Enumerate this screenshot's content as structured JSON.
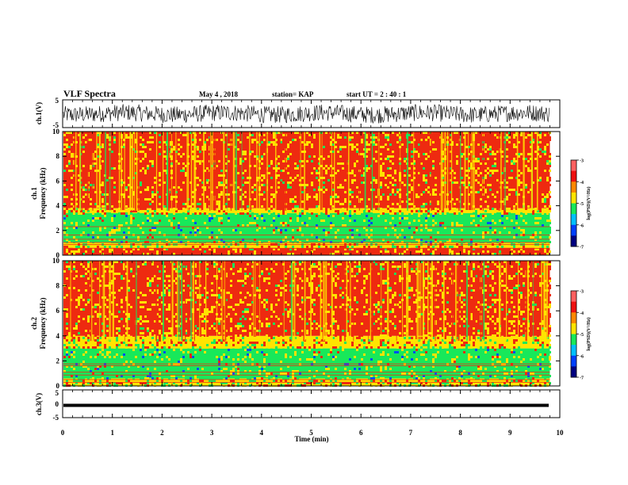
{
  "header": {
    "title": "VLF Spectra",
    "date": "May 4 , 2018",
    "station": "station= KAP",
    "start": "start UT = 2 : 40 : 1"
  },
  "chart_data": [
    {
      "type": "line",
      "name": "ch1-waveform",
      "ylabel": "ch.1(V)",
      "ylim": [
        -5,
        5
      ],
      "yticks": [
        "5",
        "-5"
      ],
      "xlim": [
        0,
        10
      ],
      "note_values": "dense noise waveform, approx -3.5 to 3 V"
    },
    {
      "type": "heatmap",
      "name": "ch1-spectrogram",
      "ylabel": "ch.1 Frequency (kHz)",
      "ylabel_line1": "ch.1",
      "ylabel_line2": "Frequency (kHz)",
      "ylim": [
        0,
        10
      ],
      "yticks": [
        "0",
        "2",
        "4",
        "6",
        "8",
        "10"
      ],
      "xlim": [
        0,
        9.8
      ],
      "bands": [
        {
          "from": 0.0,
          "to": 0.6,
          "level": "high"
        },
        {
          "from": 0.6,
          "to": 1.0,
          "level": "mixed"
        },
        {
          "from": 1.0,
          "to": 3.4,
          "level": "low"
        },
        {
          "from": 3.4,
          "to": 3.8,
          "level": "mid"
        },
        {
          "from": 3.8,
          "to": 10.0,
          "level": "high"
        }
      ],
      "colorbar": {
        "label": "log(PSD)(V²/Hz)",
        "ticks": [
          "-3",
          "-4",
          "-5",
          "-6",
          "-7"
        ],
        "range": [
          -7,
          -3
        ]
      }
    },
    {
      "type": "heatmap",
      "name": "ch2-spectrogram",
      "ylabel": "ch.2 Frequency (kHz)",
      "ylabel_line1": "ch.2",
      "ylabel_line2": "Frequency (kHz)",
      "ylim": [
        0,
        10
      ],
      "yticks": [
        "0",
        "2",
        "4",
        "6",
        "8",
        "10"
      ],
      "xlim": [
        0,
        9.8
      ],
      "bands": [
        {
          "from": 0.0,
          "to": 0.6,
          "level": "mixed"
        },
        {
          "from": 0.6,
          "to": 3.0,
          "level": "low"
        },
        {
          "from": 3.0,
          "to": 4.0,
          "level": "mid"
        },
        {
          "from": 4.0,
          "to": 10.0,
          "level": "high"
        }
      ],
      "colorbar": {
        "label": "log(PSD)(V²/Hz)",
        "ticks": [
          "-3",
          "-4",
          "-5",
          "-6",
          "-7"
        ],
        "range": [
          -7,
          -3
        ]
      }
    },
    {
      "type": "line",
      "name": "ch3-waveform",
      "ylabel": "ch.3(V)",
      "ylim": [
        -5,
        5
      ],
      "yticks": [
        "5",
        "0",
        "-5"
      ],
      "xlim": [
        0,
        10
      ],
      "values_constant": 0,
      "note_values": "flat thick trace near 0 V"
    }
  ],
  "xaxis": {
    "label": "Time (min)",
    "ticks": [
      "0",
      "1",
      "2",
      "3",
      "4",
      "5",
      "6",
      "7",
      "8",
      "9",
      "10"
    ]
  },
  "colors": {
    "high": "#ee2a10",
    "mid": "#ffe400",
    "low": "#18e85a",
    "blue": "#0050ff"
  }
}
